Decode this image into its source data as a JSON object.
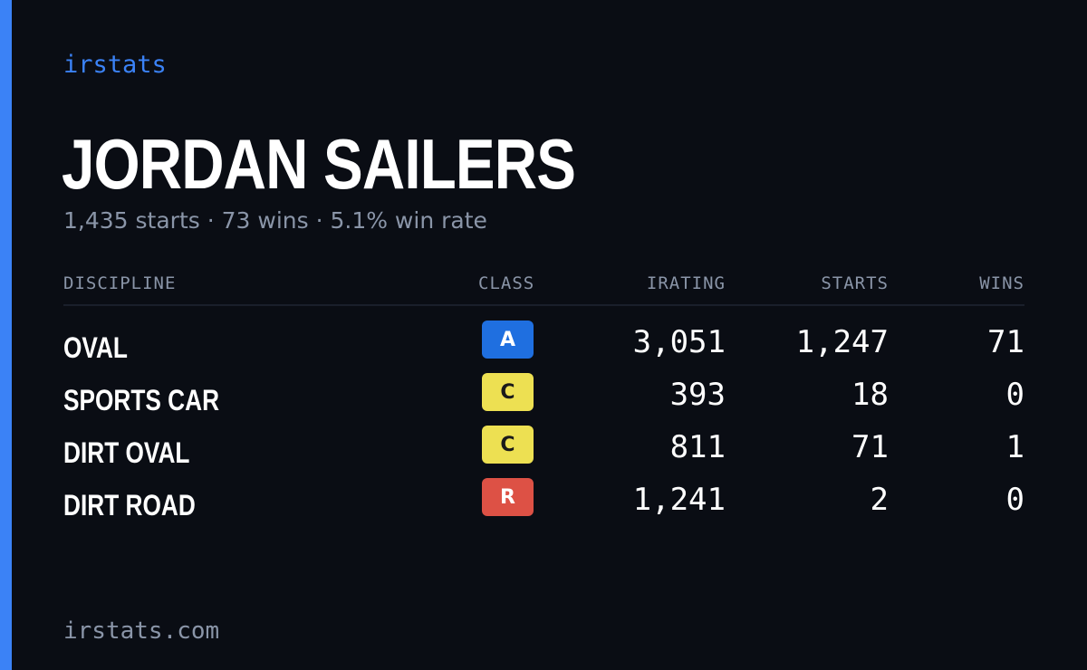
{
  "brand": "irstats",
  "driver": {
    "name": "JORDAN SAILERS",
    "summary": "1,435 starts · 73 wins · 5.1% win rate"
  },
  "table": {
    "headers": {
      "discipline": "DISCIPLINE",
      "class": "CLASS",
      "irating": "IRATING",
      "starts": "STARTS",
      "wins": "WINS"
    },
    "rows": [
      {
        "discipline": "OVAL",
        "class": "A",
        "class_bg": "#1f6fe0",
        "class_fg": "#ffffff",
        "irating": "3,051",
        "starts": "1,247",
        "wins": "71"
      },
      {
        "discipline": "SPORTS CAR",
        "class": "C",
        "class_bg": "#ede052",
        "class_fg": "#1a1a1a",
        "irating": "393",
        "starts": "18",
        "wins": "0"
      },
      {
        "discipline": "DIRT OVAL",
        "class": "C",
        "class_bg": "#ede052",
        "class_fg": "#1a1a1a",
        "irating": "811",
        "starts": "71",
        "wins": "1"
      },
      {
        "discipline": "DIRT ROAD",
        "class": "R",
        "class_bg": "#dd5145",
        "class_fg": "#ffffff",
        "irating": "1,241",
        "starts": "2",
        "wins": "0"
      }
    ]
  },
  "footer": "irstats.com",
  "colors": {
    "background": "#0a0d14",
    "accent": "#3b82f6",
    "muted_text": "#8a95a8"
  }
}
